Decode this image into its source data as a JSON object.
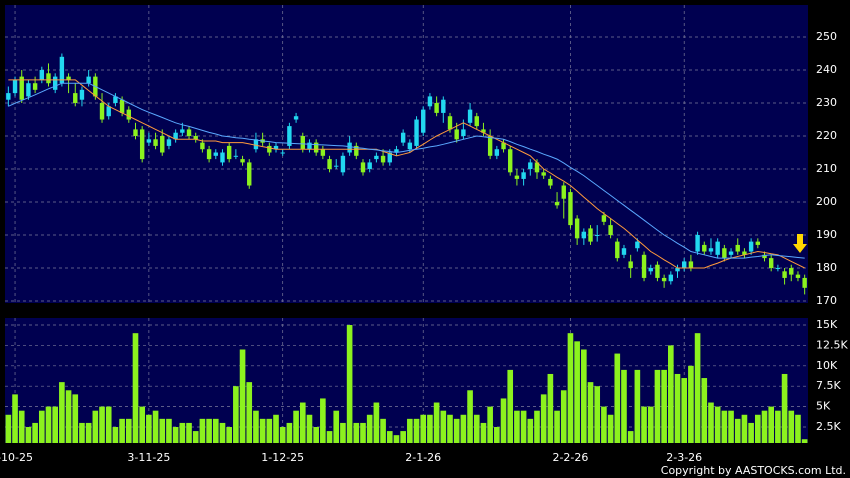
{
  "chart_data": [
    {
      "type": "candlestick",
      "categories": [
        null,
        "-10-25",
        null,
        null,
        null,
        null,
        null,
        null,
        null,
        null,
        null,
        null,
        null,
        null,
        null,
        null,
        null,
        null,
        null,
        null,
        null,
        "3-11-25",
        null,
        null,
        null,
        null,
        null,
        null,
        null,
        null,
        null,
        null,
        null,
        null,
        null,
        null,
        null,
        null,
        null,
        null,
        null,
        "1-12-25",
        null,
        null,
        null,
        null,
        null,
        null,
        null,
        null,
        null,
        null,
        null,
        null,
        null,
        null,
        null,
        null,
        null,
        null,
        null,
        null,
        "2-1-26",
        null,
        null,
        null,
        null,
        null,
        null,
        null,
        null,
        null,
        null,
        null,
        null,
        null,
        null,
        null,
        null,
        null,
        null,
        null,
        null,
        null,
        "2-2-26",
        null,
        null,
        null,
        null,
        null,
        null,
        null,
        null,
        null,
        null,
        null,
        null,
        null,
        null,
        null,
        null,
        "2-3-26",
        null,
        null,
        null,
        null,
        null,
        null,
        null,
        null,
        null,
        null,
        null,
        null,
        null,
        null,
        null,
        null,
        null,
        null
      ],
      "open": [
        231,
        233,
        238,
        232,
        236,
        237,
        239,
        234,
        236,
        238,
        233,
        231,
        236,
        238,
        230,
        226,
        230,
        231,
        228,
        222,
        222,
        218,
        219,
        220,
        217,
        219,
        221,
        222,
        220,
        218,
        216,
        214,
        212,
        217,
        214,
        213,
        212,
        216,
        219,
        217,
        216,
        215,
        217,
        225,
        220,
        216,
        218,
        216,
        213,
        211,
        209,
        215,
        217,
        212,
        210,
        213,
        214,
        212,
        215,
        218,
        216,
        217,
        221,
        229,
        230,
        227,
        226,
        222,
        220,
        224,
        226,
        222,
        220,
        214,
        218,
        216,
        208,
        207,
        210,
        212,
        209,
        207,
        200,
        205,
        203,
        195,
        189,
        192,
        190,
        196,
        193,
        188,
        184,
        182,
        186,
        184,
        179,
        181,
        177,
        176,
        179,
        180,
        182,
        185,
        187,
        185,
        184,
        186,
        184,
        187,
        185,
        185,
        188,
        184,
        183,
        180,
        179,
        180,
        178,
        177
      ],
      "high": [
        235,
        238,
        240,
        237,
        238,
        241,
        242,
        239,
        245,
        239,
        236,
        235,
        240,
        239,
        233,
        230,
        233,
        232,
        229,
        224,
        223,
        221,
        221,
        222,
        220,
        222,
        224,
        223,
        221,
        219,
        217,
        216,
        216,
        218,
        216,
        214,
        213,
        221,
        221,
        218,
        218,
        216,
        224,
        227,
        221,
        219,
        219,
        217,
        214,
        213,
        215,
        220,
        218,
        213,
        213,
        215,
        216,
        216,
        217,
        222,
        219,
        226,
        229,
        233,
        232,
        232,
        227,
        224,
        225,
        230,
        227,
        224,
        222,
        217,
        219,
        217,
        210,
        210,
        213,
        213,
        210,
        208,
        203,
        206,
        204,
        196,
        192,
        193,
        193,
        197,
        195,
        189,
        187,
        184,
        189,
        185,
        181,
        182,
        178,
        179,
        181,
        183,
        184,
        191,
        188,
        189,
        189,
        187,
        186,
        189,
        186,
        189,
        189,
        185,
        184,
        181,
        180,
        181,
        179,
        178
      ],
      "low": [
        229,
        232,
        230,
        231,
        233,
        236,
        235,
        233,
        235,
        233,
        229,
        229,
        235,
        231,
        224,
        225,
        229,
        226,
        224,
        219,
        212,
        217,
        216,
        214,
        216,
        218,
        220,
        219,
        218,
        215,
        212,
        213,
        211,
        212,
        213,
        211,
        204,
        215,
        217,
        214,
        215,
        214,
        216,
        224,
        215,
        215,
        214,
        213,
        209,
        210,
        208,
        214,
        213,
        208,
        209,
        212,
        211,
        211,
        214,
        217,
        215,
        216,
        220,
        228,
        226,
        224,
        221,
        218,
        219,
        223,
        222,
        220,
        213,
        213,
        215,
        208,
        205,
        205,
        208,
        207,
        207,
        204,
        198,
        195,
        192,
        187,
        187,
        187,
        188,
        193,
        189,
        182,
        183,
        177,
        185,
        176,
        178,
        176,
        174,
        175,
        177,
        179,
        179,
        184,
        184,
        184,
        183,
        182,
        183,
        184,
        183,
        184,
        186,
        182,
        179,
        179,
        175,
        176,
        176,
        172
      ],
      "close": [
        233,
        237,
        231,
        236,
        234,
        240,
        236,
        238,
        244,
        237,
        230,
        234,
        238,
        232,
        225,
        229,
        232,
        227,
        225,
        220,
        213,
        219,
        217,
        215,
        219,
        221,
        222,
        220,
        219,
        216,
        213,
        215,
        215,
        213,
        214,
        212,
        205,
        219,
        218,
        215,
        217,
        215,
        223,
        226,
        216,
        218,
        215,
        214,
        210,
        211,
        214,
        218,
        214,
        209,
        212,
        214,
        212,
        215,
        216,
        221,
        218,
        225,
        228,
        232,
        227,
        231,
        222,
        219,
        222,
        228,
        223,
        221,
        214,
        216,
        216,
        209,
        207,
        209,
        212,
        209,
        208,
        205,
        199,
        201,
        193,
        189,
        191,
        188,
        190,
        194,
        190,
        183,
        186,
        180,
        188,
        177,
        180,
        177,
        176,
        178,
        180,
        182,
        180,
        190,
        185,
        186,
        188,
        183,
        185,
        185,
        184,
        188,
        187,
        183,
        180,
        180,
        177,
        178,
        177,
        174
      ],
      "up_color": "#22d8f0",
      "down_color": "#8cf21e",
      "series": [
        {
          "color": "#ff9a3c",
          "values": [
            237,
            237,
            237,
            237,
            237,
            237,
            237,
            237,
            237,
            237,
            237,
            235.4,
            233.8,
            232.2,
            230.6,
            229,
            228,
            227,
            226,
            225,
            224,
            223,
            222,
            221,
            220,
            219,
            219,
            219,
            219,
            218.5,
            218.5,
            218.5,
            218,
            218,
            218,
            218,
            217.6,
            217.2,
            216.8,
            216.4,
            216,
            216,
            216,
            216,
            216,
            216,
            216,
            216,
            216,
            216,
            216,
            216,
            216,
            216,
            216,
            216,
            215.3,
            214.7,
            214,
            214.5,
            215,
            216.3,
            217.5,
            218.8,
            220,
            221,
            222,
            223,
            224,
            223,
            222,
            221,
            220,
            219,
            218,
            217,
            216,
            215,
            214,
            212,
            210,
            208.8,
            207.5,
            206.3,
            205,
            203.3,
            201.5,
            199.8,
            198,
            196.5,
            195,
            193.5,
            192,
            190.3,
            188.5,
            186.8,
            185,
            183.8,
            182.5,
            181.3,
            180,
            180,
            180,
            180,
            180,
            180.8,
            181.5,
            182.3,
            183,
            183.5,
            184,
            184.5,
            185,
            184.7,
            184.3,
            184,
            183,
            182,
            181,
            180
          ]
        },
        {
          "color": "#5aa8ff",
          "values": [
            229,
            229.9,
            230.8,
            231.6,
            232.5,
            233.4,
            234.3,
            235.1,
            236,
            236,
            236,
            236,
            236,
            235,
            234,
            233,
            232,
            231,
            230,
            229,
            228,
            227.2,
            226.4,
            225.6,
            224.8,
            224,
            223.4,
            222.9,
            222.3,
            221.7,
            221.1,
            220.6,
            220,
            219.8,
            219.5,
            219.3,
            219,
            218.8,
            218.5,
            218.3,
            218,
            217.9,
            217.8,
            217.7,
            217.6,
            217.5,
            217.4,
            217.3,
            217.2,
            217.1,
            217,
            216.8,
            216.5,
            216.3,
            216,
            215.8,
            215.5,
            215.3,
            215,
            215.3,
            215.7,
            216,
            216.3,
            216.7,
            217,
            217.5,
            218,
            218.5,
            219,
            219.5,
            220,
            219.8,
            219.5,
            219.3,
            219,
            218.3,
            217.5,
            216.8,
            216,
            215.3,
            214.5,
            213.8,
            213,
            211.8,
            210.5,
            209.3,
            208,
            206.5,
            205,
            203.5,
            202,
            200.5,
            199,
            197.5,
            196,
            194.5,
            193,
            191.5,
            190,
            188.8,
            187.5,
            186.3,
            185,
            184.5,
            184,
            183.5,
            183,
            183,
            183,
            183,
            183,
            183.3,
            183.5,
            183.8,
            184,
            183.8,
            183.6,
            183.4,
            183.2,
            183
          ]
        }
      ],
      "ylim": [
        169.4,
        259.7
      ],
      "yticks": [
        170,
        180,
        190,
        200,
        210,
        220,
        230,
        240,
        250
      ],
      "grid": true
    },
    {
      "type": "bar",
      "values": [
        4000,
        6500,
        4500,
        2500,
        3000,
        4500,
        5000,
        5000,
        8000,
        7000,
        6500,
        3000,
        3000,
        4500,
        5000,
        5000,
        2500,
        3500,
        3500,
        14000,
        5000,
        4000,
        4500,
        3500,
        3500,
        2500,
        3000,
        3000,
        2000,
        3500,
        3500,
        3500,
        3000,
        2500,
        7500,
        12000,
        8000,
        4500,
        3500,
        3500,
        4000,
        2500,
        3000,
        4500,
        5500,
        4000,
        2500,
        6000,
        2000,
        4500,
        3000,
        15000,
        3000,
        3000,
        4000,
        5500,
        3500,
        2000,
        1500,
        2000,
        3500,
        3500,
        4000,
        4000,
        5500,
        4500,
        4000,
        3500,
        4000,
        7000,
        4000,
        3000,
        5000,
        2500,
        6000,
        9500,
        4500,
        4500,
        3500,
        4500,
        6500,
        9000,
        4500,
        7000,
        14000,
        13000,
        12000,
        8000,
        7500,
        5000,
        4000,
        11500,
        9500,
        2000,
        9500,
        5000,
        5000,
        9500,
        9500,
        12500,
        9000,
        8500,
        10000,
        14000,
        8500,
        5500,
        5000,
        4500,
        4500,
        3500,
        4000,
        3000,
        4000,
        4500,
        5000,
        4500,
        9000,
        4500,
        4000,
        1000
      ],
      "color": "#8cf21e",
      "ylim": [
        540,
        15860
      ],
      "yticks": [
        {
          "value": 2500,
          "label": "2.5K"
        },
        {
          "value": 5000,
          "label": "5K"
        },
        {
          "value": 7500,
          "label": "7.5K"
        },
        {
          "value": 10000,
          "label": "10K"
        },
        {
          "value": 12500,
          "label": "12.5K"
        },
        {
          "value": 15000,
          "label": "15K"
        }
      ],
      "grid": true
    }
  ],
  "copyright": "Copyright by AASTOCKS.com Ltd."
}
